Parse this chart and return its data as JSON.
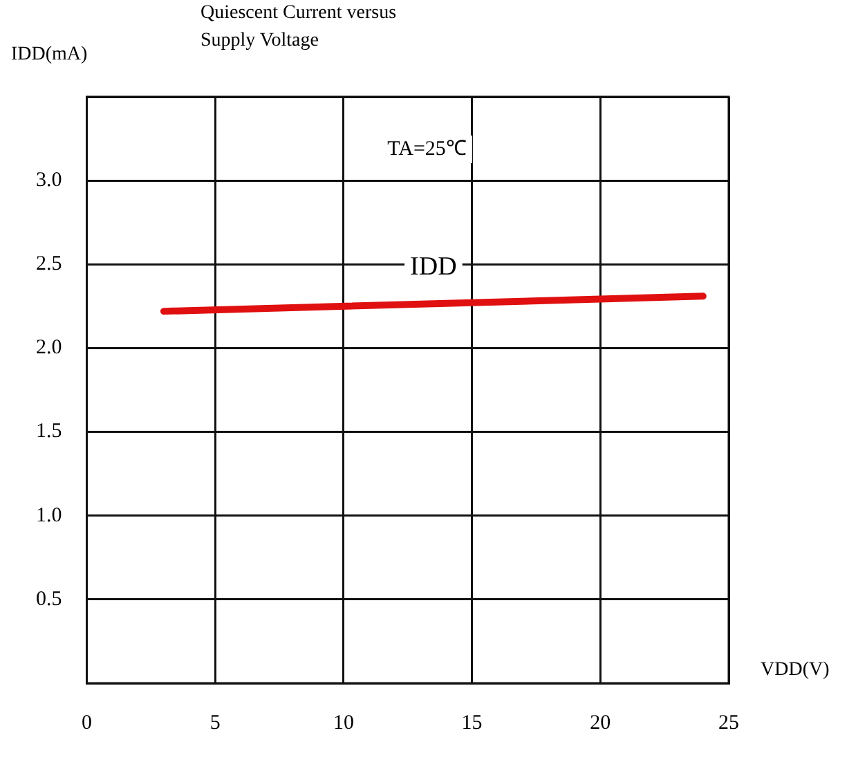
{
  "chart_data": {
    "type": "line",
    "title": "Quiescent Current versus\nSupply Voltage",
    "xlabel": "VDD(V)",
    "ylabel": "IDD(mA)",
    "annotations": [
      "TA=25℃"
    ],
    "x": [
      3,
      24
    ],
    "series": [
      {
        "name": "IDD",
        "color": "#e01010",
        "values": [
          2.22,
          2.31
        ]
      }
    ],
    "xlim": [
      0,
      25
    ],
    "xticks": [
      0,
      5,
      10,
      15,
      20,
      25
    ],
    "ylim": [
      0,
      3.5
    ],
    "yticks": [
      {
        "value": 0,
        "label": null
      },
      0.5,
      {
        "value": 1,
        "label": "1.0"
      },
      1.5,
      {
        "value": 2,
        "label": "2.0"
      },
      2.5,
      {
        "value": 3,
        "label": "3.0"
      },
      {
        "value": 3.5,
        "label": null
      }
    ],
    "grid": true,
    "legend": false,
    "marker": "none",
    "line_style": "solid"
  }
}
